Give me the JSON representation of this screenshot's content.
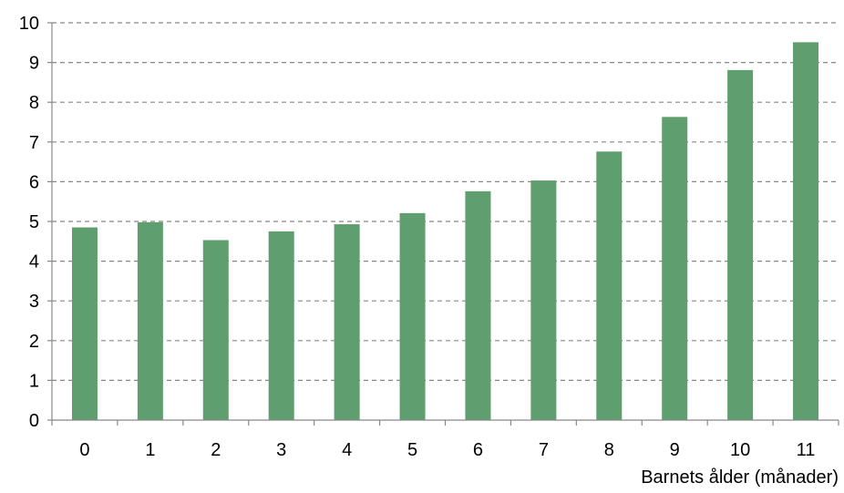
{
  "chart_data": {
    "type": "bar",
    "title": "",
    "xlabel": "Barnets ålder (månader)",
    "ylabel": "",
    "categories": [
      "0",
      "1",
      "2",
      "3",
      "4",
      "5",
      "6",
      "7",
      "8",
      "9",
      "10",
      "11"
    ],
    "values": [
      4.85,
      4.98,
      4.53,
      4.75,
      4.93,
      5.21,
      5.76,
      6.03,
      6.76,
      7.63,
      8.81,
      9.51
    ],
    "ylim": [
      0,
      10
    ],
    "yticks": [
      "0",
      "1",
      "2",
      "3",
      "4",
      "5",
      "6",
      "7",
      "8",
      "9",
      "10"
    ],
    "grid": true,
    "grid_style": "dashed",
    "legend": "none",
    "colors": {
      "bar": "#5f9e6e",
      "grid": "#888888",
      "axis": "#888888"
    }
  }
}
